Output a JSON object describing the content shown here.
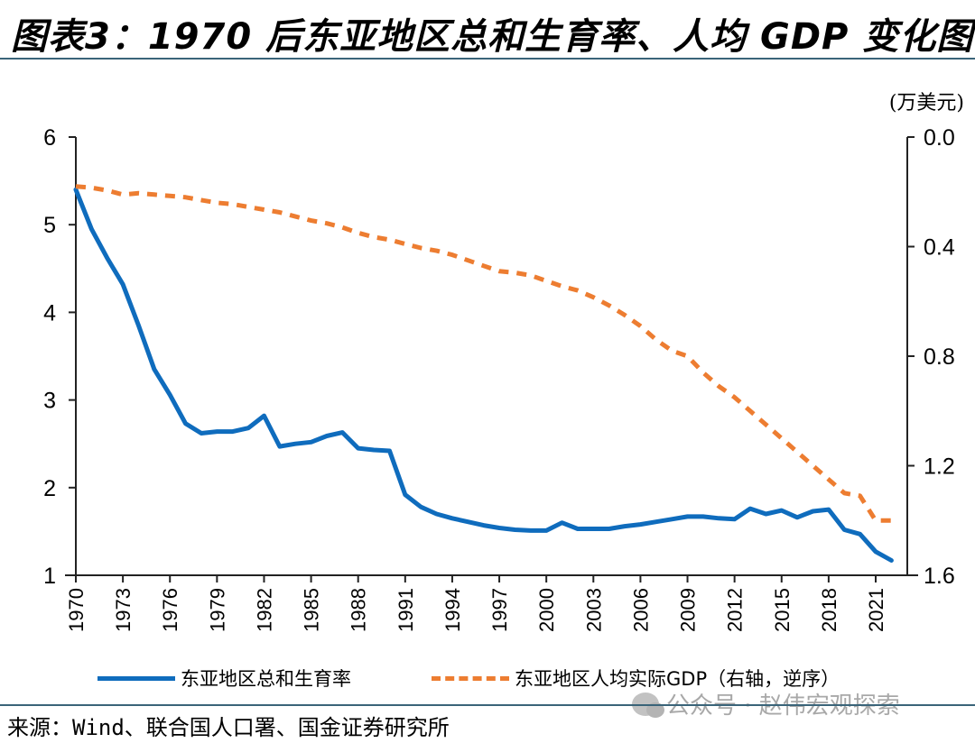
{
  "title": "图表3：1970 后东亚地区总和生育率、人均 GDP 变化图",
  "unit_label": "(万美元)",
  "legend": {
    "tfr": "东亚地区总和生育率",
    "gdp": "东亚地区人均实际GDP（右轴，逆序）"
  },
  "source": "来源：Wind、联合国人口署、国金证券研究所",
  "watermark": "公众号 · 赵伟宏观探索",
  "colors": {
    "tfr": "#0f6cbd",
    "gdp": "#ed7d31",
    "rule": "#3a6479"
  },
  "chart_data": {
    "type": "line",
    "title": "1970 后东亚地区总和生育率、人均 GDP 变化图",
    "x": [
      1970,
      1971,
      1972,
      1973,
      1974,
      1975,
      1976,
      1977,
      1978,
      1979,
      1980,
      1981,
      1982,
      1983,
      1984,
      1985,
      1986,
      1987,
      1988,
      1989,
      1990,
      1991,
      1992,
      1993,
      1994,
      1995,
      1996,
      1997,
      1998,
      1999,
      2000,
      2001,
      2002,
      2003,
      2004,
      2005,
      2006,
      2007,
      2008,
      2009,
      2010,
      2011,
      2012,
      2013,
      2014,
      2015,
      2016,
      2017,
      2018,
      2019,
      2020,
      2021,
      2022
    ],
    "x_tick_labels": [
      "1970",
      "1973",
      "1976",
      "1979",
      "1982",
      "1985",
      "1988",
      "1991",
      "1994",
      "1997",
      "2000",
      "2003",
      "2006",
      "2009",
      "2012",
      "2015",
      "2018",
      "2021"
    ],
    "series": [
      {
        "name": "东亚地区总和生育率",
        "axis": "left",
        "style": "solid",
        "values": [
          5.4,
          4.95,
          4.62,
          4.32,
          3.85,
          3.35,
          3.06,
          2.73,
          2.62,
          2.64,
          2.64,
          2.68,
          2.82,
          2.47,
          2.5,
          2.52,
          2.59,
          2.63,
          2.45,
          2.43,
          2.42,
          1.92,
          1.78,
          1.7,
          1.65,
          1.61,
          1.57,
          1.54,
          1.52,
          1.51,
          1.51,
          1.6,
          1.53,
          1.53,
          1.53,
          1.56,
          1.58,
          1.61,
          1.64,
          1.67,
          1.67,
          1.65,
          1.64,
          1.76,
          1.7,
          1.74,
          1.66,
          1.73,
          1.75,
          1.52,
          1.47,
          1.27,
          1.17
        ]
      },
      {
        "name": "东亚地区人均实际GDP（右轴，逆序）",
        "axis": "right",
        "style": "dashed",
        "values": [
          0.18,
          0.185,
          0.195,
          0.21,
          0.205,
          0.21,
          0.215,
          0.22,
          0.23,
          0.24,
          0.245,
          0.255,
          0.265,
          0.275,
          0.29,
          0.305,
          0.315,
          0.33,
          0.35,
          0.365,
          0.375,
          0.39,
          0.405,
          0.415,
          0.43,
          0.45,
          0.47,
          0.49,
          0.495,
          0.505,
          0.525,
          0.545,
          0.56,
          0.585,
          0.615,
          0.65,
          0.69,
          0.74,
          0.78,
          0.8,
          0.86,
          0.91,
          0.95,
          1.0,
          1.05,
          1.1,
          1.15,
          1.2,
          1.25,
          1.3,
          1.31,
          1.4,
          1.4
        ]
      }
    ],
    "y_left": {
      "label": "",
      "ylim": [
        1,
        6
      ],
      "ticks": [
        "1",
        "2",
        "3",
        "4",
        "5",
        "6"
      ]
    },
    "y_right": {
      "label": "(万美元)",
      "ylim": [
        0.0,
        1.6
      ],
      "inverted": true,
      "ticks": [
        "0.0",
        "0.4",
        "0.8",
        "1.2",
        "1.6"
      ]
    },
    "grid": false,
    "legend_position": "bottom"
  }
}
